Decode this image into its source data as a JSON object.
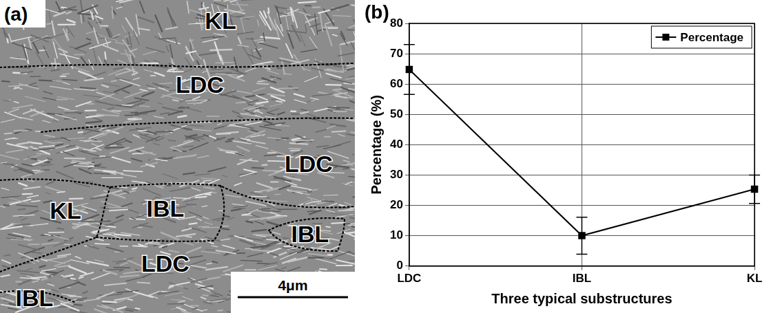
{
  "micrograph": {
    "letter": "(a)",
    "labels": [
      "KL",
      "LDC",
      "LDC",
      "KL",
      "IBL",
      "IBL",
      "LDC",
      "IBL"
    ],
    "scale_bar": "4μm"
  },
  "chart_data": {
    "type": "line",
    "letter": "(b)",
    "x_label": "Three typical substructures",
    "y_label": "Percentage (%)",
    "categories": [
      "LDC",
      "IBL",
      "KL"
    ],
    "series": [
      {
        "name": "Percentage",
        "color": "#000000",
        "marker": "square",
        "line_style": "solid",
        "values": [
          64.8,
          10,
          25.3
        ],
        "errors": [
          8.2,
          6.1,
          4.7
        ]
      }
    ],
    "ylim": [
      0,
      80
    ],
    "yticks": [
      0,
      10,
      20,
      30,
      40,
      50,
      60,
      70,
      80
    ],
    "grid": true,
    "legend": "upper right"
  }
}
